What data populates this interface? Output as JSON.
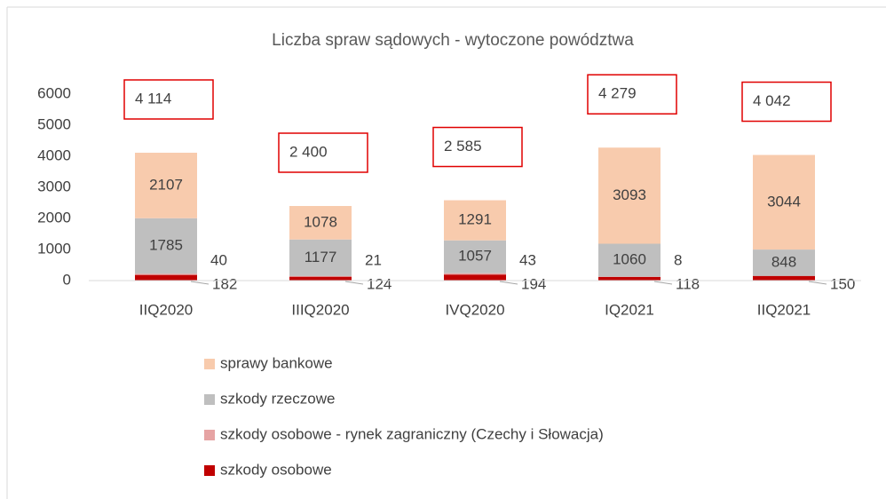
{
  "chart_data": {
    "type": "stacked_bar",
    "title": "Liczba spraw sądowych -  wytoczone powództwa",
    "categories": [
      "IIQ2020",
      "IIIQ2020",
      "IVQ2020",
      "IQ2021",
      "IIQ2021"
    ],
    "series": [
      {
        "name": "szkody osobowe",
        "color": "#c00000",
        "values": [
          182,
          124,
          194,
          118,
          150
        ]
      },
      {
        "name": "szkody osobowe - rynek zagraniczny (Czechy i Słowacja)",
        "color": "#e6a3a3",
        "values": [
          40,
          21,
          43,
          8,
          null
        ]
      },
      {
        "name": "szkody rzeczowe",
        "color": "#bfbfbf",
        "values": [
          1785,
          1177,
          1057,
          1060,
          848
        ]
      },
      {
        "name": "sprawy bankowe",
        "color": "#f8cbad",
        "values": [
          2107,
          1078,
          1291,
          3093,
          3044
        ]
      }
    ],
    "totals": [
      4114,
      2400,
      2585,
      4279,
      4042
    ],
    "totals_labels": [
      "4 114",
      "2 400",
      "2 585",
      "4 279",
      "4 042"
    ],
    "ylim": [
      0,
      6000
    ],
    "yticks": [
      0,
      1000,
      2000,
      3000,
      4000,
      5000,
      6000
    ],
    "grid": false,
    "legend": "bottom"
  }
}
